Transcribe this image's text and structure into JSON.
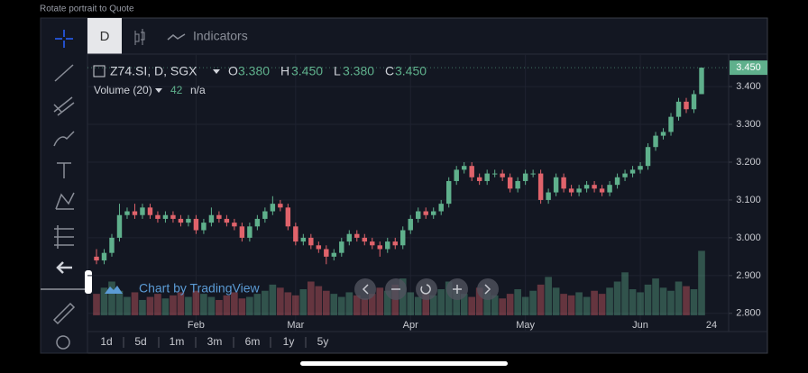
{
  "status_text": "Rotate portrait to Quote",
  "toolbar": {
    "interval": "D",
    "indicators": "Indicators"
  },
  "legend": {
    "symbol": "Z74.SI, D, SGX",
    "o_label": "O",
    "o": "3.380",
    "h_label": "H",
    "h": "3.450",
    "l_label": "L",
    "l": "3.380",
    "c_label": "C",
    "c": "3.450",
    "volume_name": "Volume (20)",
    "volume_value": "42",
    "volume_ma": "n/a"
  },
  "watermark": "Chart by TradingView",
  "ranges": [
    "1d",
    "5d",
    "1m",
    "3m",
    "6m",
    "1y",
    "5y"
  ],
  "chart_data": {
    "type": "candlestick",
    "categories": [
      null,
      null,
      null,
      null,
      null,
      null,
      null,
      null,
      null,
      null,
      null,
      null,
      null,
      "Feb",
      null,
      null,
      null,
      null,
      null,
      null,
      null,
      null,
      null,
      null,
      null,
      null,
      "Mar",
      null,
      null,
      null,
      null,
      null,
      null,
      null,
      null,
      null,
      null,
      null,
      null,
      null,
      null,
      "Apr",
      null,
      null,
      null,
      null,
      null,
      null,
      null,
      null,
      null,
      null,
      null,
      null,
      null,
      null,
      "May",
      null,
      null,
      null,
      null,
      null,
      null,
      null,
      null,
      null,
      null,
      null,
      null,
      null,
      null,
      "Jun",
      null,
      null,
      null,
      null,
      null,
      null,
      null,
      null
    ],
    "x_end_label": "24",
    "candles": [
      [
        2.95,
        2.97,
        2.93,
        2.94
      ],
      [
        2.94,
        2.97,
        2.93,
        2.96
      ],
      [
        2.96,
        3.01,
        2.95,
        3.0
      ],
      [
        3.0,
        3.09,
        2.99,
        3.06
      ],
      [
        3.06,
        3.08,
        3.05,
        3.07
      ],
      [
        3.07,
        3.09,
        3.05,
        3.06
      ],
      [
        3.06,
        3.09,
        3.05,
        3.08
      ],
      [
        3.08,
        3.09,
        3.05,
        3.06
      ],
      [
        3.06,
        3.07,
        3.04,
        3.05
      ],
      [
        3.05,
        3.07,
        3.04,
        3.06
      ],
      [
        3.06,
        3.07,
        3.04,
        3.05
      ],
      [
        3.05,
        3.06,
        3.03,
        3.04
      ],
      [
        3.04,
        3.06,
        3.03,
        3.05
      ],
      [
        3.05,
        3.06,
        3.01,
        3.02
      ],
      [
        3.02,
        3.05,
        3.01,
        3.04
      ],
      [
        3.04,
        3.08,
        3.03,
        3.06
      ],
      [
        3.06,
        3.07,
        3.04,
        3.05
      ],
      [
        3.05,
        3.06,
        3.03,
        3.04
      ],
      [
        3.04,
        3.05,
        3.02,
        3.03
      ],
      [
        3.03,
        3.04,
        2.99,
        3.0
      ],
      [
        3.0,
        3.04,
        2.99,
        3.03
      ],
      [
        3.03,
        3.06,
        3.02,
        3.05
      ],
      [
        3.05,
        3.08,
        3.04,
        3.07
      ],
      [
        3.07,
        3.11,
        3.06,
        3.09
      ],
      [
        3.09,
        3.1,
        3.07,
        3.08
      ],
      [
        3.08,
        3.09,
        3.02,
        3.03
      ],
      [
        3.03,
        3.04,
        2.98,
        2.99
      ],
      [
        2.99,
        3.01,
        2.98,
        3.0
      ],
      [
        3.0,
        3.01,
        2.97,
        2.98
      ],
      [
        2.98,
        2.99,
        2.96,
        2.97
      ],
      [
        2.97,
        2.98,
        2.93,
        2.95
      ],
      [
        2.95,
        2.97,
        2.94,
        2.96
      ],
      [
        2.96,
        3.0,
        2.95,
        2.99
      ],
      [
        2.99,
        3.02,
        2.98,
        3.01
      ],
      [
        3.01,
        3.02,
        2.99,
        3.0
      ],
      [
        3.0,
        3.01,
        2.98,
        2.99
      ],
      [
        2.99,
        3.0,
        2.97,
        2.98
      ],
      [
        2.98,
        2.99,
        2.95,
        2.97
      ],
      [
        2.97,
        3.0,
        2.96,
        2.99
      ],
      [
        2.99,
        3.0,
        2.97,
        2.98
      ],
      [
        2.98,
        3.03,
        2.97,
        3.02
      ],
      [
        3.02,
        3.06,
        3.01,
        3.05
      ],
      [
        3.05,
        3.08,
        3.04,
        3.07
      ],
      [
        3.07,
        3.08,
        3.05,
        3.06
      ],
      [
        3.06,
        3.08,
        3.05,
        3.07
      ],
      [
        3.07,
        3.1,
        3.06,
        3.09
      ],
      [
        3.09,
        3.16,
        3.08,
        3.15
      ],
      [
        3.15,
        3.19,
        3.14,
        3.18
      ],
      [
        3.18,
        3.2,
        3.17,
        3.19
      ],
      [
        3.19,
        3.2,
        3.15,
        3.16
      ],
      [
        3.16,
        3.17,
        3.14,
        3.15
      ],
      [
        3.15,
        3.18,
        3.14,
        3.17
      ],
      [
        3.17,
        3.18,
        3.16,
        3.17
      ],
      [
        3.17,
        3.18,
        3.15,
        3.16
      ],
      [
        3.16,
        3.17,
        3.12,
        3.13
      ],
      [
        3.13,
        3.16,
        3.12,
        3.15
      ],
      [
        3.15,
        3.18,
        3.14,
        3.17
      ],
      [
        3.17,
        3.18,
        3.16,
        3.17
      ],
      [
        3.17,
        3.18,
        3.09,
        3.1
      ],
      [
        3.1,
        3.13,
        3.09,
        3.12
      ],
      [
        3.12,
        3.17,
        3.11,
        3.16
      ],
      [
        3.16,
        3.17,
        3.12,
        3.13
      ],
      [
        3.13,
        3.14,
        3.11,
        3.12
      ],
      [
        3.12,
        3.14,
        3.11,
        3.13
      ],
      [
        3.13,
        3.15,
        3.12,
        3.14
      ],
      [
        3.14,
        3.15,
        3.12,
        3.13
      ],
      [
        3.13,
        3.14,
        3.11,
        3.12
      ],
      [
        3.12,
        3.15,
        3.11,
        3.14
      ],
      [
        3.14,
        3.17,
        3.13,
        3.16
      ],
      [
        3.16,
        3.18,
        3.15,
        3.17
      ],
      [
        3.17,
        3.19,
        3.16,
        3.18
      ],
      [
        3.18,
        3.2,
        3.17,
        3.19
      ],
      [
        3.19,
        3.25,
        3.18,
        3.24
      ],
      [
        3.24,
        3.28,
        3.23,
        3.27
      ],
      [
        3.27,
        3.29,
        3.26,
        3.28
      ],
      [
        3.28,
        3.33,
        3.27,
        3.32
      ],
      [
        3.32,
        3.37,
        3.31,
        3.36
      ],
      [
        3.36,
        3.37,
        3.33,
        3.34
      ],
      [
        3.34,
        3.39,
        3.33,
        3.38
      ],
      [
        3.38,
        3.45,
        3.38,
        3.45
      ]
    ],
    "volume": [
      14,
      18,
      22,
      16,
      12,
      15,
      10,
      12,
      14,
      11,
      13,
      15,
      12,
      16,
      14,
      12,
      10,
      13,
      15,
      11,
      12,
      14,
      16,
      20,
      18,
      15,
      13,
      17,
      22,
      19,
      16,
      14,
      12,
      15,
      13,
      11,
      14,
      18,
      16,
      20,
      24,
      15,
      12,
      14,
      13,
      17,
      22,
      16,
      14,
      12,
      18,
      15,
      13,
      11,
      14,
      17,
      12,
      16,
      20,
      25,
      18,
      14,
      13,
      15,
      12,
      16,
      14,
      18,
      22,
      28,
      17,
      15,
      20,
      24,
      18,
      16,
      22,
      19,
      17,
      42
    ],
    "vlim": [
      0,
      44
    ],
    "ylim": [
      2.79,
      3.486
    ],
    "yticks": [
      {
        "value": 2.8,
        "label": "2.800"
      },
      {
        "value": 2.9,
        "label": "2.900"
      },
      {
        "value": 3.0,
        "label": "3.000"
      },
      {
        "value": 3.1,
        "label": "3.100"
      },
      {
        "value": 3.2,
        "label": "3.200"
      },
      {
        "value": 3.3,
        "label": "3.300"
      },
      {
        "value": 3.4,
        "label": "3.400"
      }
    ],
    "last_label": "3.450",
    "up_color": "#5fb08c",
    "down_color": "#e0636b",
    "grid": true
  }
}
